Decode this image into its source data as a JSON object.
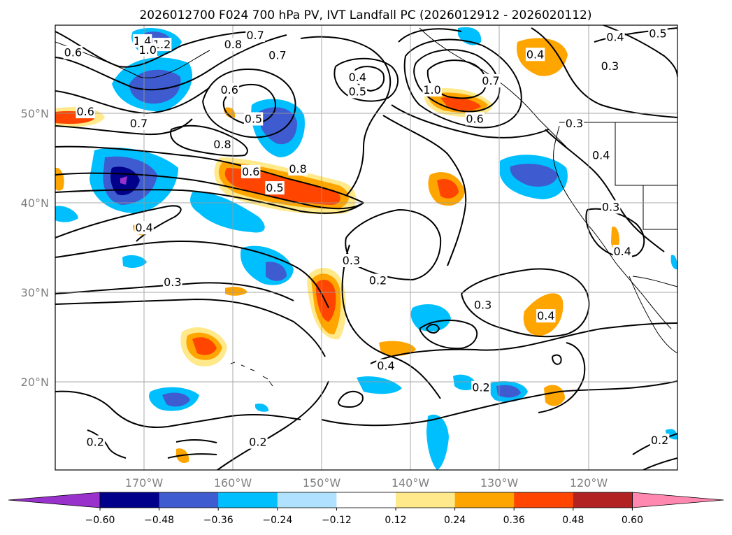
{
  "chart_data": {
    "type": "map-contour",
    "title": "2026012700 F024 700 hPa PV, IVT Landfall PC (2026012912 - 2026020112)",
    "filled_field": "IVT Landfall PC",
    "contour_field": "700 hPa PV",
    "lat_ticks": [
      "50°N",
      "40°N",
      "30°N",
      "20°N"
    ],
    "lat_values": [
      50,
      40,
      30,
      20
    ],
    "lon_ticks": [
      "170°W",
      "160°W",
      "150°W",
      "140°W",
      "130°W",
      "120°W"
    ],
    "lon_values": [
      -170,
      -160,
      -150,
      -140,
      -130,
      -120
    ],
    "lon_range": [
      -180,
      -110
    ],
    "lat_range": [
      10,
      59
    ],
    "colorbar": {
      "levels": [
        -0.72,
        -0.6,
        -0.48,
        -0.36,
        -0.24,
        -0.12,
        0.12,
        0.24,
        0.36,
        0.48,
        0.6,
        0.72
      ],
      "tick_labels": [
        "−0.60",
        "−0.48",
        "−0.36",
        "−0.24",
        "−0.12",
        "0.12",
        "0.24",
        "0.36",
        "0.48",
        "0.60"
      ],
      "colors": [
        "#9932CC",
        "#00008B",
        "#3E5BCF",
        "#00BFFF",
        "#B0E2FF",
        "#FFFFFF",
        "#FFE98A",
        "#FFA500",
        "#FF4500",
        "#B22222",
        "#FF88B0"
      ],
      "extend": "both"
    },
    "contour_labels": [
      {
        "text": "0.6",
        "lon": -178.0,
        "lat": 55.9
      },
      {
        "text": "1.4",
        "lon": -170.2,
        "lat": 57.2
      },
      {
        "text": "1.2",
        "lon": -168.0,
        "lat": 56.8
      },
      {
        "text": "1.0",
        "lon": -169.6,
        "lat": 56.2
      },
      {
        "text": "0.7",
        "lon": -157.5,
        "lat": 57.8
      },
      {
        "text": "0.8",
        "lon": -160.0,
        "lat": 56.8
      },
      {
        "text": "0.7",
        "lon": -155.0,
        "lat": 55.6
      },
      {
        "text": "0.6",
        "lon": -160.4,
        "lat": 51.8
      },
      {
        "text": "0.4",
        "lon": -146.0,
        "lat": 53.2
      },
      {
        "text": "0.5",
        "lon": -146.0,
        "lat": 51.6
      },
      {
        "text": "1.0",
        "lon": -137.6,
        "lat": 51.8
      },
      {
        "text": "0.7",
        "lon": -131.0,
        "lat": 52.8
      },
      {
        "text": "0.4",
        "lon": -126.0,
        "lat": 55.7
      },
      {
        "text": "0.4",
        "lon": -117.0,
        "lat": 57.6
      },
      {
        "text": "0.5",
        "lon": -112.2,
        "lat": 58.0
      },
      {
        "text": "0.3",
        "lon": -117.6,
        "lat": 54.4
      },
      {
        "text": "0.6",
        "lon": -176.6,
        "lat": 49.4
      },
      {
        "text": "0.5",
        "lon": -157.7,
        "lat": 48.6
      },
      {
        "text": "0.7",
        "lon": -170.6,
        "lat": 48.1
      },
      {
        "text": "0.6",
        "lon": -132.8,
        "lat": 48.6
      },
      {
        "text": "0.3",
        "lon": -121.6,
        "lat": 48.1
      },
      {
        "text": "0.4",
        "lon": -118.6,
        "lat": 44.6
      },
      {
        "text": "0.8",
        "lon": -161.2,
        "lat": 45.8
      },
      {
        "text": "0.6",
        "lon": -158.0,
        "lat": 42.8
      },
      {
        "text": "0.8",
        "lon": -152.7,
        "lat": 43.1
      },
      {
        "text": "0.5",
        "lon": -155.3,
        "lat": 41.0
      },
      {
        "text": "0.3",
        "lon": -117.5,
        "lat": 38.9
      },
      {
        "text": "0.4",
        "lon": -170.0,
        "lat": 36.6
      },
      {
        "text": "0.4",
        "lon": -116.2,
        "lat": 34.0
      },
      {
        "text": "0.3",
        "lon": -146.7,
        "lat": 33.0
      },
      {
        "text": "0.2",
        "lon": -143.7,
        "lat": 30.8
      },
      {
        "text": "0.3",
        "lon": -166.8,
        "lat": 30.6
      },
      {
        "text": "0.3",
        "lon": -131.9,
        "lat": 28.1
      },
      {
        "text": "0.4",
        "lon": -124.8,
        "lat": 26.9
      },
      {
        "text": "0.4",
        "lon": -142.8,
        "lat": 21.4
      },
      {
        "text": "0.2",
        "lon": -132.1,
        "lat": 19.0
      },
      {
        "text": "0.2",
        "lon": -175.5,
        "lat": 13.0
      },
      {
        "text": "0.2",
        "lon": -157.2,
        "lat": 13.0
      },
      {
        "text": "0.2",
        "lon": -112.0,
        "lat": 13.2
      }
    ]
  }
}
